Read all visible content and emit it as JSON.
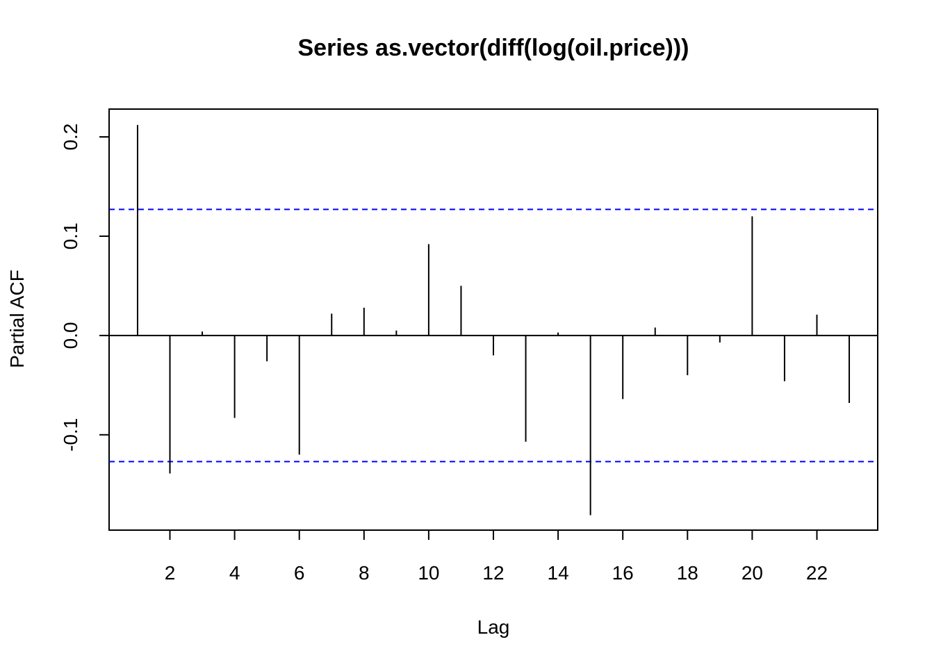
{
  "chart_data": {
    "type": "bar",
    "title": "Series  as.vector(diff(log(oil.price)))",
    "xlabel": "Lag",
    "ylabel": "Partial ACF",
    "x_ticks": [
      2,
      4,
      6,
      8,
      10,
      12,
      14,
      16,
      18,
      20,
      22
    ],
    "y_ticks": [
      -0.1,
      0.0,
      0.1,
      0.2
    ],
    "y_tick_labels": [
      "-0.1",
      "0.0",
      "0.1",
      "0.2"
    ],
    "xlim": [
      0.12,
      23.88
    ],
    "ylim": [
      -0.196,
      0.228
    ],
    "lags": [
      1,
      2,
      3,
      4,
      5,
      6,
      7,
      8,
      9,
      10,
      11,
      12,
      13,
      14,
      15,
      16,
      17,
      18,
      19,
      20,
      21,
      22,
      23
    ],
    "values": [
      0.212,
      -0.139,
      0.004,
      -0.083,
      -0.026,
      -0.12,
      0.022,
      0.028,
      0.005,
      0.092,
      0.05,
      -0.02,
      -0.107,
      0.003,
      -0.181,
      -0.064,
      0.008,
      -0.04,
      -0.007,
      0.12,
      -0.046,
      0.021,
      -0.068
    ],
    "confidence_limits": [
      0.127,
      -0.127
    ],
    "colors": {
      "bars": "#000000",
      "confidence": "#0000ff",
      "zero_line": "#000000",
      "frame": "#000000"
    }
  }
}
